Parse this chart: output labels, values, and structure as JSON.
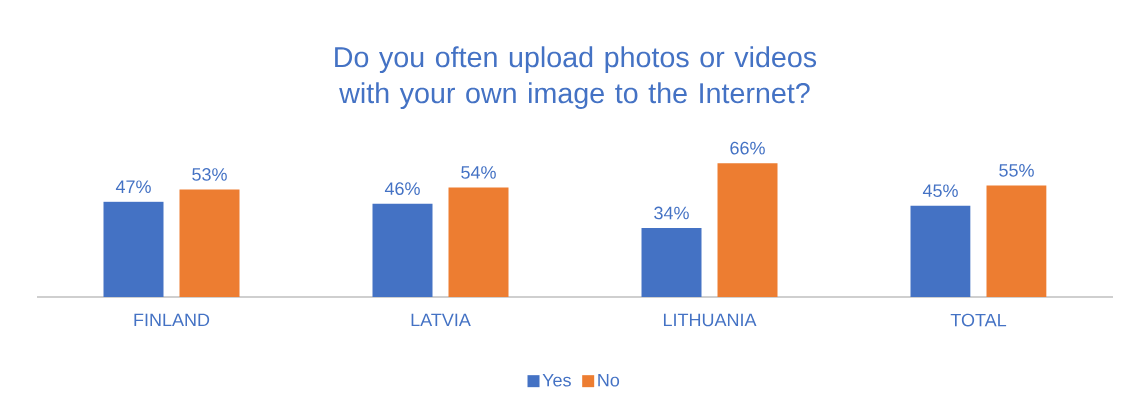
{
  "chart_data": {
    "type": "bar",
    "title": "Do you often upload photos or videos with your own image to the Internet?",
    "categories": [
      "FINLAND",
      "LATVIA",
      "LITHUANIA",
      "TOTAL"
    ],
    "series": [
      {
        "name": "Yes",
        "color": "#4472c4",
        "values": [
          47,
          46,
          34,
          45
        ],
        "value_labels": [
          "47%",
          "46%",
          "34%",
          "45%"
        ]
      },
      {
        "name": "No",
        "color": "#ed7d31",
        "values": [
          53,
          54,
          66,
          55
        ],
        "value_labels": [
          "53%",
          "54%",
          "66%",
          "55%"
        ]
      }
    ],
    "legend": "bottom"
  }
}
